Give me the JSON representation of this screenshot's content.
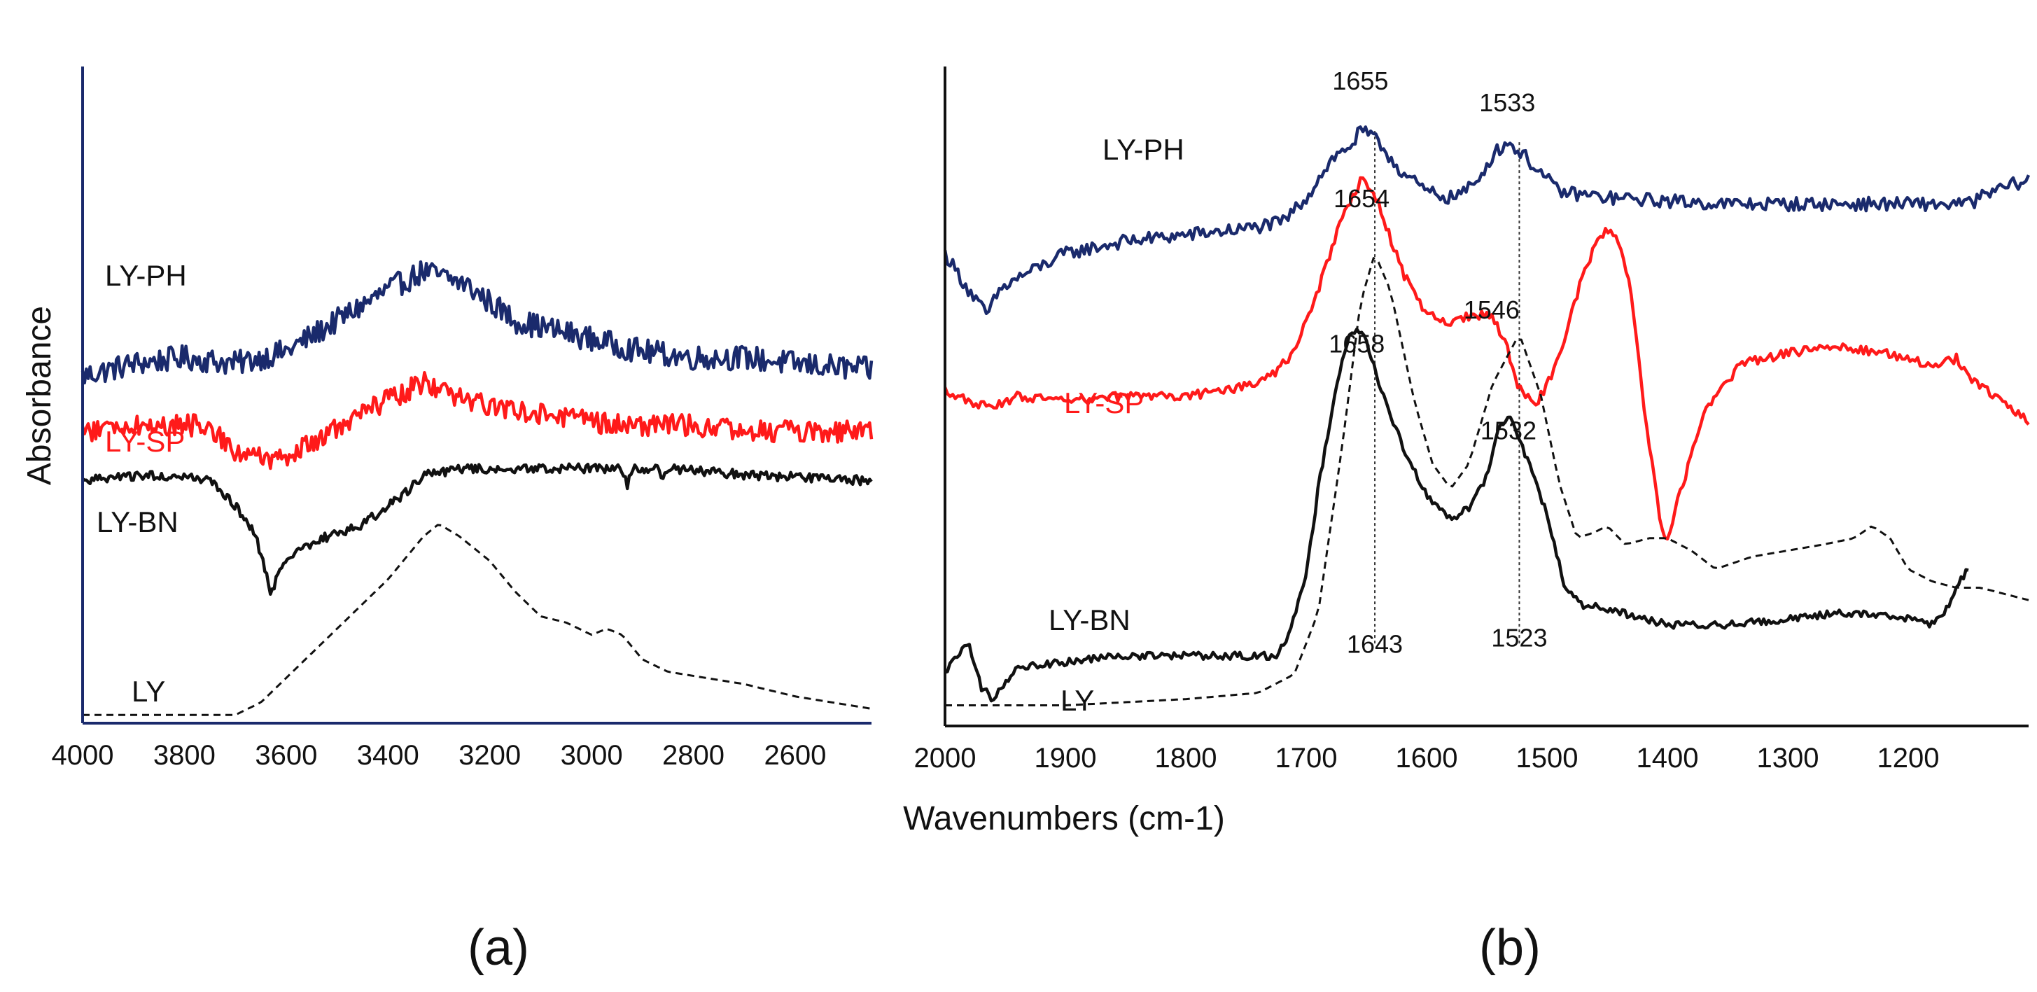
{
  "figure": {
    "ylabel": "Absorbance",
    "xlabel": "Wavenumbers (cm-1)",
    "panel_labels": [
      "(a)",
      "(b)"
    ]
  },
  "colors": {
    "navy": "#1a2a6c",
    "red": "#ff1a1a",
    "black": "#111111"
  },
  "chart_data": [
    {
      "type": "line",
      "panel": "(a)",
      "xlim": [
        4000,
        2450
      ],
      "ylim": [
        0,
        100
      ],
      "xticks": [
        4000,
        3800,
        3600,
        3400,
        3200,
        3000,
        2800,
        2600
      ],
      "series": [
        {
          "name": "LY-PH",
          "label": "LY-PH",
          "color": "#1a2a6c",
          "style": "solid",
          "noise": 4,
          "points": [
            [
              4000,
              56
            ],
            [
              3900,
              58
            ],
            [
              3800,
              59
            ],
            [
              3700,
              58
            ],
            [
              3600,
              60
            ],
            [
              3500,
              65
            ],
            [
              3400,
              70
            ],
            [
              3330,
              73
            ],
            [
              3250,
              71
            ],
            [
              3150,
              65
            ],
            [
              3000,
              62
            ],
            [
              2900,
              60
            ],
            [
              2800,
              59
            ],
            [
              2700,
              59
            ],
            [
              2600,
              58
            ],
            [
              2450,
              57
            ]
          ]
        },
        {
          "name": "LY-SP",
          "label": "LY-SP",
          "color": "#ff1a1a",
          "style": "solid",
          "noise": 3.5,
          "points": [
            [
              4000,
              47
            ],
            [
              3900,
              48
            ],
            [
              3760,
              48
            ],
            [
              3700,
              44
            ],
            [
              3620,
              42
            ],
            [
              3550,
              45
            ],
            [
              3450,
              50
            ],
            [
              3330,
              55
            ],
            [
              3250,
              52
            ],
            [
              3100,
              50
            ],
            [
              2950,
              48
            ],
            [
              2800,
              48
            ],
            [
              2650,
              47
            ],
            [
              2450,
              47
            ]
          ]
        },
        {
          "name": "LY-BN",
          "label": "LY-BN",
          "color": "#111111",
          "style": "solid",
          "noise": 1.5,
          "points": [
            [
              4000,
              39
            ],
            [
              3850,
              40
            ],
            [
              3750,
              39
            ],
            [
              3700,
              35
            ],
            [
              3660,
              30
            ],
            [
              3630,
              21
            ],
            [
              3600,
              26
            ],
            [
              3550,
              29
            ],
            [
              3450,
              32
            ],
            [
              3380,
              36
            ],
            [
              3330,
              40
            ],
            [
              3250,
              41
            ],
            [
              3150,
              41
            ],
            [
              3000,
              41
            ],
            [
              2940,
              41
            ],
            [
              2930,
              38
            ],
            [
              2920,
              41
            ],
            [
              2870,
              41
            ],
            [
              2860,
              39
            ],
            [
              2850,
              41
            ],
            [
              2700,
              40
            ],
            [
              2450,
              39
            ]
          ]
        },
        {
          "name": "LY",
          "label": "LY",
          "color": "#111111",
          "style": "dashed",
          "noise": 0,
          "points": [
            [
              4000,
              1
            ],
            [
              3800,
              1
            ],
            [
              3700,
              1
            ],
            [
              3650,
              3
            ],
            [
              3600,
              7
            ],
            [
              3500,
              15
            ],
            [
              3400,
              23
            ],
            [
              3330,
              30
            ],
            [
              3300,
              32
            ],
            [
              3260,
              30
            ],
            [
              3200,
              26
            ],
            [
              3150,
              21
            ],
            [
              3100,
              17
            ],
            [
              3050,
              16
            ],
            [
              3000,
              14
            ],
            [
              2970,
              15
            ],
            [
              2940,
              14
            ],
            [
              2900,
              10
            ],
            [
              2850,
              8
            ],
            [
              2700,
              6
            ],
            [
              2600,
              4
            ],
            [
              2450,
              2
            ]
          ]
        }
      ]
    },
    {
      "type": "line",
      "panel": "(b)",
      "xlim": [
        2000,
        1100
      ],
      "ylim": [
        0,
        100
      ],
      "xticks": [
        2000,
        1900,
        1800,
        1700,
        1600,
        1500,
        1400,
        1300,
        1200
      ],
      "series": [
        {
          "name": "LY-PH",
          "label": "LY-PH",
          "color": "#1a2a6c",
          "style": "solid",
          "noise": 2.2,
          "points": [
            [
              2000,
              76
            ],
            [
              1980,
              70
            ],
            [
              1965,
              66
            ],
            [
              1955,
              70
            ],
            [
              1940,
              72
            ],
            [
              1900,
              76
            ],
            [
              1850,
              78
            ],
            [
              1800,
              79
            ],
            [
              1750,
              80
            ],
            [
              1720,
              81
            ],
            [
              1700,
              85
            ],
            [
              1680,
              91
            ],
            [
              1660,
              94
            ],
            [
              1655,
              96
            ],
            [
              1640,
              94
            ],
            [
              1620,
              89
            ],
            [
              1600,
              86
            ],
            [
              1580,
              85
            ],
            [
              1560,
              87
            ],
            [
              1545,
              92
            ],
            [
              1533,
              94
            ],
            [
              1520,
              92
            ],
            [
              1505,
              89
            ],
            [
              1490,
              86
            ],
            [
              1450,
              85
            ],
            [
              1350,
              84
            ],
            [
              1250,
              84
            ],
            [
              1180,
              84
            ],
            [
              1150,
              84
            ],
            [
              1130,
              86
            ],
            [
              1100,
              88
            ]
          ]
        },
        {
          "name": "LY-SP",
          "label": "LY-SP",
          "color": "#ff1a1a",
          "style": "solid",
          "noise": 1.5,
          "points": [
            [
              2000,
              54
            ],
            [
              1980,
              52
            ],
            [
              1960,
              51
            ],
            [
              1940,
              53
            ],
            [
              1900,
              52
            ],
            [
              1850,
              53
            ],
            [
              1800,
              53
            ],
            [
              1760,
              54
            ],
            [
              1730,
              56
            ],
            [
              1710,
              60
            ],
            [
              1690,
              70
            ],
            [
              1670,
              82
            ],
            [
              1654,
              88
            ],
            [
              1640,
              84
            ],
            [
              1620,
              73
            ],
            [
              1600,
              66
            ],
            [
              1580,
              65
            ],
            [
              1560,
              66
            ],
            [
              1546,
              66
            ],
            [
              1535,
              62
            ],
            [
              1525,
              55
            ],
            [
              1510,
              51
            ],
            [
              1490,
              59
            ],
            [
              1470,
              73
            ],
            [
              1460,
              77
            ],
            [
              1450,
              80
            ],
            [
              1440,
              78
            ],
            [
              1430,
              70
            ],
            [
              1420,
              52
            ],
            [
              1405,
              31
            ],
            [
              1400,
              30
            ],
            [
              1390,
              37
            ],
            [
              1370,
              50
            ],
            [
              1340,
              58
            ],
            [
              1300,
              60
            ],
            [
              1260,
              61
            ],
            [
              1220,
              60
            ],
            [
              1180,
              58
            ],
            [
              1160,
              59
            ],
            [
              1150,
              56
            ],
            [
              1120,
              52
            ],
            [
              1100,
              49
            ]
          ]
        },
        {
          "name": "LY-BN",
          "label": "LY-BN",
          "color": "#111111",
          "style": "solid",
          "noise": 1.2,
          "points": [
            [
              2000,
              8
            ],
            [
              1990,
              11
            ],
            [
              1980,
              13
            ],
            [
              1970,
              6
            ],
            [
              1960,
              4
            ],
            [
              1940,
              9
            ],
            [
              1900,
              10
            ],
            [
              1850,
              11
            ],
            [
              1800,
              11
            ],
            [
              1750,
              11
            ],
            [
              1725,
              11
            ],
            [
              1715,
              14
            ],
            [
              1700,
              24
            ],
            [
              1690,
              38
            ],
            [
              1675,
              55
            ],
            [
              1665,
              62
            ],
            [
              1658,
              64
            ],
            [
              1650,
              62
            ],
            [
              1640,
              55
            ],
            [
              1620,
              45
            ],
            [
              1600,
              37
            ],
            [
              1580,
              33
            ],
            [
              1565,
              35
            ],
            [
              1550,
              40
            ],
            [
              1540,
              48
            ],
            [
              1532,
              50
            ],
            [
              1525,
              47
            ],
            [
              1515,
              42
            ],
            [
              1500,
              34
            ],
            [
              1485,
              22
            ],
            [
              1470,
              19
            ],
            [
              1455,
              19
            ],
            [
              1440,
              18
            ],
            [
              1420,
              17
            ],
            [
              1400,
              16
            ],
            [
              1350,
              16
            ],
            [
              1300,
              17
            ],
            [
              1250,
              18
            ],
            [
              1200,
              17
            ],
            [
              1180,
              16
            ],
            [
              1170,
              18
            ],
            [
              1160,
              22
            ],
            [
              1150,
              25
            ]
          ]
        },
        {
          "name": "LY",
          "label": "LY",
          "color": "#111111",
          "style": "dashed",
          "noise": 0,
          "points": [
            [
              2000,
              3
            ],
            [
              1900,
              3
            ],
            [
              1800,
              4
            ],
            [
              1740,
              5
            ],
            [
              1710,
              8
            ],
            [
              1690,
              18
            ],
            [
              1670,
              45
            ],
            [
              1655,
              68
            ],
            [
              1643,
              76
            ],
            [
              1630,
              70
            ],
            [
              1610,
              52
            ],
            [
              1595,
              42
            ],
            [
              1580,
              38
            ],
            [
              1565,
              42
            ],
            [
              1545,
              55
            ],
            [
              1523,
              63
            ],
            [
              1505,
              53
            ],
            [
              1490,
              39
            ],
            [
              1475,
              30
            ],
            [
              1460,
              31
            ],
            [
              1450,
              32
            ],
            [
              1435,
              29
            ],
            [
              1415,
              30
            ],
            [
              1400,
              30
            ],
            [
              1380,
              28
            ],
            [
              1360,
              25
            ],
            [
              1330,
              27
            ],
            [
              1300,
              28
            ],
            [
              1270,
              29
            ],
            [
              1245,
              30
            ],
            [
              1230,
              32
            ],
            [
              1215,
              30
            ],
            [
              1200,
              25
            ],
            [
              1180,
              23
            ],
            [
              1160,
              22
            ],
            [
              1140,
              22
            ],
            [
              1120,
              21
            ],
            [
              1100,
              20
            ]
          ]
        }
      ],
      "annotations": [
        {
          "text": "1655",
          "x": 1655,
          "y": 102.5
        },
        {
          "text": "1533",
          "x": 1533,
          "y": 99
        },
        {
          "text": "1654",
          "x": 1654,
          "y": 83.5
        },
        {
          "text": "1546",
          "x": 1546,
          "y": 65.5
        },
        {
          "text": "1658",
          "x": 1658,
          "y": 60
        },
        {
          "text": "1532",
          "x": 1532,
          "y": 46
        },
        {
          "text": "1643",
          "x": 1643,
          "y": 11.5
        },
        {
          "text": "1523",
          "x": 1523,
          "y": 12.5
        }
      ],
      "reference_lines": [
        {
          "x": 1643,
          "y_from": 13,
          "y_to": 96
        },
        {
          "x": 1523,
          "y_from": 13,
          "y_to": 94
        }
      ]
    }
  ]
}
